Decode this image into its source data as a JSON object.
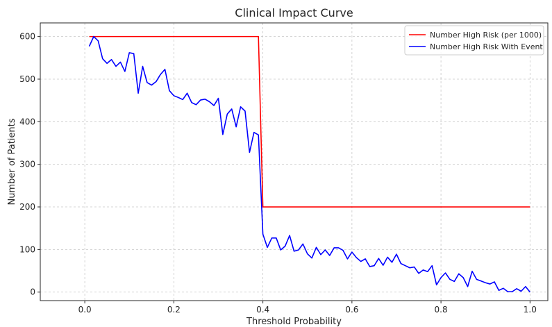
{
  "chart_data": {
    "type": "line",
    "title": "Clinical Impact Curve",
    "xlabel": "Threshold Probability",
    "ylabel": "Number of Patients",
    "xlim": [
      -0.1,
      1.04
    ],
    "ylim": [
      -20,
      632
    ],
    "x_ticks": [
      0.0,
      0.2,
      0.4,
      0.6,
      0.8,
      1.0
    ],
    "x_tick_labels": [
      "0.0",
      "0.2",
      "0.4",
      "0.6",
      "0.8",
      "1.0"
    ],
    "y_ticks": [
      0,
      100,
      200,
      300,
      400,
      500,
      600
    ],
    "y_tick_labels": [
      "0",
      "100",
      "200",
      "300",
      "400",
      "500",
      "600"
    ],
    "grid": true,
    "legend_position": "top-right",
    "series": [
      {
        "name": "Number High Risk (per 1000)",
        "color": "#ff0000",
        "x": [
          0.01,
          0.39,
          0.4,
          1.0
        ],
        "y": [
          600,
          600,
          200,
          200
        ]
      },
      {
        "name": "Number High Risk With Event",
        "color": "#0000ff",
        "x": [
          0.01,
          0.02,
          0.03,
          0.04,
          0.05,
          0.06,
          0.07,
          0.08,
          0.09,
          0.1,
          0.11,
          0.12,
          0.13,
          0.14,
          0.15,
          0.16,
          0.17,
          0.18,
          0.19,
          0.2,
          0.21,
          0.22,
          0.23,
          0.24,
          0.25,
          0.26,
          0.27,
          0.28,
          0.29,
          0.3,
          0.31,
          0.32,
          0.33,
          0.34,
          0.35,
          0.36,
          0.37,
          0.38,
          0.39,
          0.4,
          0.41,
          0.42,
          0.43,
          0.44,
          0.45,
          0.46,
          0.47,
          0.48,
          0.49,
          0.5,
          0.51,
          0.52,
          0.53,
          0.54,
          0.55,
          0.56,
          0.57,
          0.58,
          0.59,
          0.6,
          0.61,
          0.62,
          0.63,
          0.64,
          0.65,
          0.66,
          0.67,
          0.68,
          0.69,
          0.7,
          0.71,
          0.72,
          0.73,
          0.74,
          0.75,
          0.76,
          0.77,
          0.78,
          0.79,
          0.8,
          0.81,
          0.82,
          0.83,
          0.84,
          0.85,
          0.86,
          0.87,
          0.88,
          0.89,
          0.9,
          0.91,
          0.92,
          0.93,
          0.94,
          0.95,
          0.96,
          0.97,
          0.98,
          0.99,
          1.0
        ],
        "y": [
          577,
          600,
          590,
          548,
          537,
          546,
          530,
          540,
          518,
          562,
          560,
          467,
          530,
          492,
          486,
          494,
          511,
          523,
          473,
          461,
          457,
          452,
          467,
          445,
          440,
          451,
          453,
          447,
          438,
          455,
          370,
          418,
          430,
          388,
          435,
          425,
          328,
          375,
          369,
          136,
          105,
          127,
          127,
          99,
          108,
          133,
          96,
          99,
          113,
          90,
          80,
          105,
          88,
          99,
          86,
          104,
          104,
          98,
          78,
          94,
          81,
          72,
          78,
          60,
          62,
          79,
          63,
          82,
          70,
          89,
          67,
          62,
          57,
          59,
          44,
          52,
          48,
          62,
          17,
          34,
          45,
          30,
          25,
          43,
          34,
          13,
          49,
          30,
          26,
          22,
          19,
          24,
          4,
          9,
          1,
          1,
          8,
          2,
          13,
          0
        ]
      }
    ]
  }
}
